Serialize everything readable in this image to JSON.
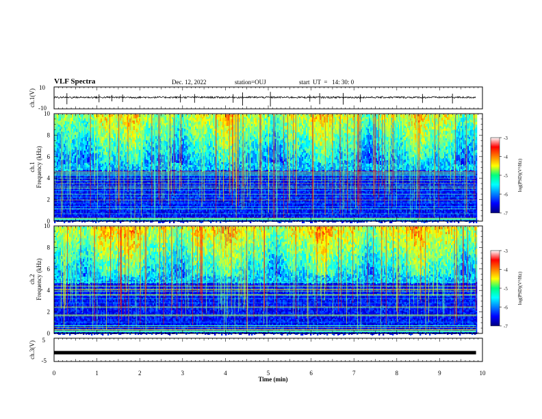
{
  "header": {
    "title": "VLF Spectra",
    "date": "Dec. 12, 2022",
    "station": "station=OUJ",
    "start": "start  UT  =   14: 30: 0"
  },
  "chart_data": [
    {
      "type": "line",
      "name": "ch1-waveform",
      "ylabel": "ch.1(V)",
      "ylim": [
        -10,
        10
      ],
      "yticks": [
        "10",
        "-10"
      ],
      "baseline_volts": 0.5,
      "noise_volts": 0.8,
      "spikes_min": [
        0.3,
        1.05,
        1.35,
        1.6,
        2.95,
        3.28,
        4.18,
        4.4,
        5.05,
        5.97,
        6.2,
        6.75,
        7.15,
        8.6,
        9.3
      ]
    },
    {
      "type": "heatmap",
      "name": "ch1-spectrogram",
      "ylabel": "ch.1 Frequency (kHz)",
      "ylim": [
        0,
        10
      ],
      "yticks": [
        "0",
        "2",
        "4",
        "6",
        "8",
        "10"
      ],
      "colorbar_label": "log(PSD)(V²/Hz)",
      "colorbar_ticks": [
        "-3",
        "-4",
        "-5",
        "-6",
        "-7"
      ],
      "clim": [
        -7,
        -3
      ],
      "high_band_khz": [
        5.5,
        10
      ],
      "low_band_khz": [
        0,
        4.8
      ],
      "data_end_min": 9.85
    },
    {
      "type": "heatmap",
      "name": "ch2-spectrogram",
      "ylabel": "ch.2 Frequency (kHz)",
      "ylim": [
        0,
        10
      ],
      "yticks": [
        "0",
        "2",
        "4",
        "6",
        "8",
        "10"
      ],
      "colorbar_label": "log(PSD)(V²/Hz)",
      "colorbar_ticks": [
        "-3",
        "-4",
        "-5",
        "-6",
        "-7"
      ],
      "clim": [
        -7,
        -3
      ],
      "high_band_khz": [
        5.5,
        10
      ],
      "low_band_khz": [
        0,
        4.8
      ],
      "data_end_min": 9.85
    },
    {
      "type": "line",
      "name": "ch3-waveform",
      "ylabel": "ch.3(V)",
      "ylim": [
        -5,
        5
      ],
      "yticks": [
        "5",
        "-5"
      ],
      "baseline_volts": -1.2,
      "data_end_min": 9.85
    }
  ],
  "xaxis": {
    "label": "Time  (min)",
    "range": [
      0,
      10
    ],
    "ticks": [
      "0",
      "1",
      "2",
      "3",
      "4",
      "5",
      "6",
      "7",
      "8",
      "9",
      "10"
    ]
  }
}
